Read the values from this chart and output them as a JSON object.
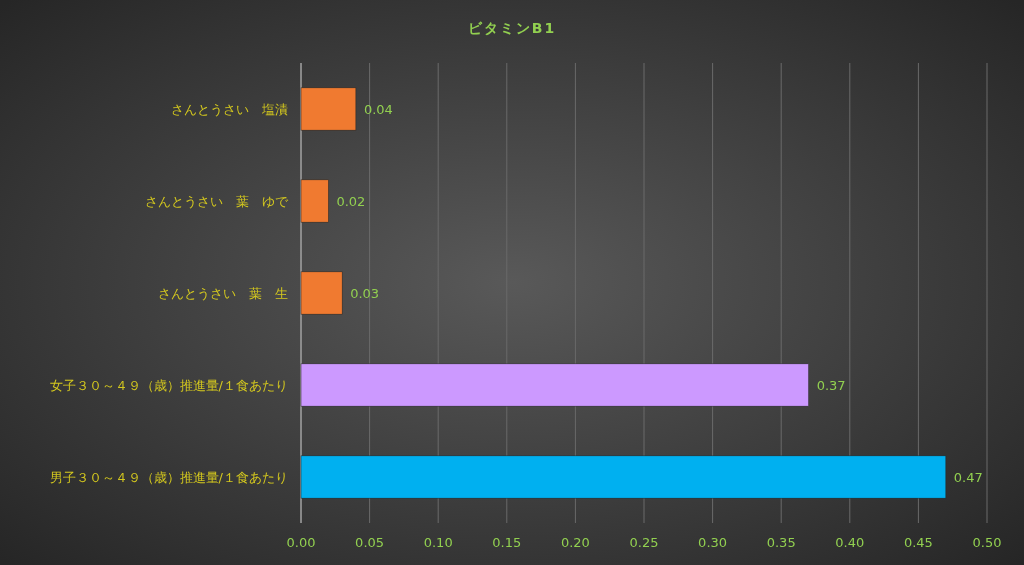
{
  "chart_data": {
    "type": "bar",
    "orientation": "horizontal",
    "title": "ビタミンB1",
    "categories": [
      "さんとうさい　塩漬",
      "さんとうさい　葉　ゆで",
      "さんとうさい　葉　生",
      "女子３０～４９（歳）推進量/１食あたり",
      "男子３０～４９（歳）推進量/１食あたり"
    ],
    "values": [
      0.04,
      0.02,
      0.03,
      0.37,
      0.47
    ],
    "colors": [
      "#f07a30",
      "#f07a30",
      "#f07a30",
      "#cc99ff",
      "#00b0f0"
    ],
    "xlim": [
      0,
      0.5
    ],
    "xticks": [
      {
        "value": 0,
        "label": "0.00"
      },
      {
        "value": 0.05,
        "label": "0.05"
      },
      {
        "value": 0.1,
        "label": "0.10"
      },
      {
        "value": 0.15,
        "label": "0.15"
      },
      {
        "value": 0.2,
        "label": "0.20"
      },
      {
        "value": 0.25,
        "label": "0.25"
      },
      {
        "value": 0.3,
        "label": "0.30"
      },
      {
        "value": 0.35,
        "label": "0.35"
      },
      {
        "value": 0.4,
        "label": "0.40"
      },
      {
        "value": 0.45,
        "label": "0.45"
      },
      {
        "value": 0.5,
        "label": "0.50"
      }
    ],
    "grid": "x",
    "data_labels": true
  }
}
